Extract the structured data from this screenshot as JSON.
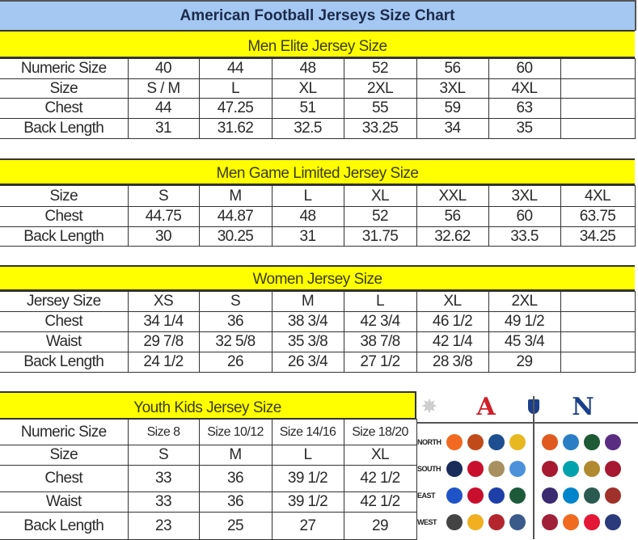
{
  "title": "American Football Jerseys Size Chart",
  "colors": {
    "title_bg": "#a4c8f2",
    "section_bg": "#ffff00"
  },
  "sections": [
    {
      "heading": "Men Elite Jersey Size",
      "rows": [
        [
          "Numeric Size",
          "40",
          "44",
          "48",
          "52",
          "56",
          "60",
          ""
        ],
        [
          "Size",
          "S / M",
          "L",
          "XL",
          "2XL",
          "3XL",
          "4XL",
          ""
        ],
        [
          "Chest",
          "44",
          "47.25",
          "51",
          "55",
          "59",
          "63",
          ""
        ],
        [
          "Back Length",
          "31",
          "31.62",
          "32.5",
          "33.25",
          "34",
          "35",
          ""
        ]
      ]
    },
    {
      "heading": "Men Game Limited Jersey Size",
      "rows": [
        [
          "Size",
          "S",
          "M",
          "L",
          "XL",
          "XXL",
          "3XL",
          "4XL"
        ],
        [
          "Chest",
          "44.75",
          "44.87",
          "48",
          "52",
          "56",
          "60",
          "63.75"
        ],
        [
          "Back Length",
          "30",
          "30.25",
          "31",
          "31.75",
          "32.62",
          "33.5",
          "34.25"
        ]
      ]
    },
    {
      "heading": "Women Jersey Size",
      "rows": [
        [
          "Jersey Size",
          "XS",
          "S",
          "M",
          "L",
          "XL",
          "2XL",
          ""
        ],
        [
          "Chest",
          "34 1/4",
          "36",
          "38 3/4",
          "42 3/4",
          "46 1/2",
          "49 1/2",
          ""
        ],
        [
          "Waist",
          "29 7/8",
          "32 5/8",
          "35 3/8",
          "38 7/8",
          "42 1/4",
          "45 3/4",
          ""
        ],
        [
          "Back Length",
          "24 1/2",
          "26",
          "26 3/4",
          "27 1/2",
          "28 3/8",
          "29",
          ""
        ]
      ]
    },
    {
      "heading": "Youth Kids Jersey Size",
      "rows": [
        [
          "Numeric Size",
          "Size 8",
          "Size 10/12",
          "Size 14/16",
          "Size 18/20"
        ],
        [
          "Size",
          "S",
          "M",
          "L",
          "XL"
        ],
        [
          "Chest",
          "33",
          "36",
          "39 1/2",
          "42 1/2"
        ],
        [
          "Waist",
          "33",
          "36",
          "39 1/2",
          "42 1/2"
        ],
        [
          "Back Length",
          "23",
          "25",
          "27",
          "29"
        ]
      ]
    }
  ],
  "league_panel": {
    "conferences": [
      {
        "name": "AFC",
        "logo": "afc-logo",
        "color": "#d0202a"
      },
      {
        "name": "NFL",
        "logo": "nfl-shield-logo",
        "color": "#1b3f8b"
      },
      {
        "name": "NFC",
        "logo": "nfc-logo",
        "color": "#1b3f8b"
      }
    ],
    "divisions": [
      {
        "label": "NORTH",
        "afc": [
          [
            "bengals",
            "#f26a21"
          ],
          [
            "browns",
            "#c04a1a"
          ],
          [
            "colts",
            "#1d4f91"
          ],
          [
            "steelers",
            "#e8b820"
          ]
        ],
        "nfc": [
          [
            "bears",
            "#e05a20"
          ],
          [
            "lions",
            "#2a7fc4"
          ],
          [
            "packers",
            "#1d5a35"
          ],
          [
            "vikings",
            "#5a2d82"
          ]
        ]
      },
      {
        "label": "SOUTH",
        "afc": [
          [
            "cowboys",
            "#1a2c5a"
          ],
          [
            "texans",
            "#c8102e"
          ],
          [
            "saints",
            "#a89060"
          ],
          [
            "titans",
            "#4b92db"
          ]
        ],
        "nfc": [
          [
            "falcons",
            "#a71930"
          ],
          [
            "dolphins",
            "#00a3ad"
          ],
          [
            "jaguars",
            "#b08a30"
          ],
          [
            "buccaneers",
            "#a71930"
          ]
        ]
      },
      {
        "label": "EAST",
        "afc": [
          [
            "bills",
            "#1f54c8"
          ],
          [
            "patriots",
            "#c8102e"
          ],
          [
            "giants",
            "#1e3fa8"
          ],
          [
            "jets",
            "#1c5a3a"
          ]
        ],
        "nfc": [
          [
            "ravens",
            "#3a2a70"
          ],
          [
            "panthers",
            "#0085ca"
          ],
          [
            "eagles",
            "#2a5a50"
          ],
          [
            "redskins",
            "#a0302a"
          ]
        ]
      },
      {
        "label": "WEST",
        "afc": [
          [
            "raiders",
            "#444444"
          ],
          [
            "chargers",
            "#f0b020"
          ],
          [
            "49ers",
            "#b3262e"
          ],
          [
            "seahawks",
            "#3a5a8a"
          ]
        ],
        "nfc": [
          [
            "cardinals",
            "#a0203a"
          ],
          [
            "broncos",
            "#f06a20"
          ],
          [
            "chiefs",
            "#e31837"
          ],
          [
            "rams",
            "#2a3a7a"
          ]
        ]
      }
    ]
  }
}
